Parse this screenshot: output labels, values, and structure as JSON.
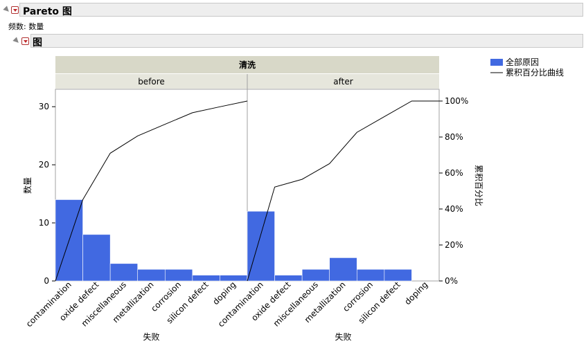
{
  "report": {
    "title": "Pareto 图",
    "freq_label": "频数: 数量",
    "section_title": "图"
  },
  "chart_data": {
    "type": "bar",
    "title": "",
    "group_header": "清洗",
    "panels": [
      {
        "name": "before",
        "categories": [
          "contamination",
          "oxide defect",
          "miscellaneous",
          "metallization",
          "corrosion",
          "silicon defect",
          "doping"
        ],
        "values": [
          14,
          8,
          3,
          2,
          2,
          1,
          1
        ],
        "cumulative_percent": [
          45.2,
          71.0,
          80.6,
          87.1,
          93.5,
          96.8,
          100
        ]
      },
      {
        "name": "after",
        "categories": [
          "contamination",
          "oxide defect",
          "miscellaneous",
          "metallization",
          "corrosion",
          "silicon defect",
          "doping"
        ],
        "values": [
          12,
          1,
          2,
          4,
          2,
          2,
          0
        ],
        "cumulative_percent": [
          52.2,
          56.5,
          65.2,
          82.6,
          91.3,
          100,
          100
        ]
      }
    ],
    "xlabel": "失败",
    "ylabel": "数量",
    "ylabel_right": "累积百分比",
    "ylim": [
      0,
      33
    ],
    "yticks": [
      0,
      10,
      20,
      30
    ],
    "y2ticks": [
      "0%",
      "20%",
      "40%",
      "60%",
      "80%",
      "100%"
    ],
    "legend": {
      "position": "top-right",
      "items": [
        {
          "label": "全部原因",
          "kind": "bar"
        },
        {
          "label": "累积百分比曲线",
          "kind": "line"
        }
      ]
    },
    "colors": {
      "bar": "#4169E1",
      "line": "#000000",
      "header": "#d8d8c8",
      "subheader": "#e6e6dc"
    }
  }
}
